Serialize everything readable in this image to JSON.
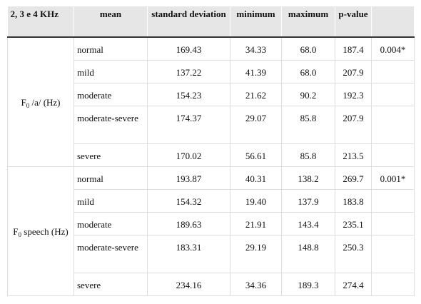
{
  "header": {
    "group": "2, 3 e 4 KHz",
    "col_grade": "mean",
    "col_mean": "standard deviation",
    "col_sd": "minimum",
    "col_min": "maximum",
    "col_max": "p-value",
    "col_p": ""
  },
  "groups": [
    {
      "label_main": "F",
      "label_sub": "0",
      "label_rest": " /a/ (Hz)",
      "rows": [
        {
          "grade": "normal",
          "mean": "169.43",
          "sd": "34.33",
          "min": "68.0",
          "max": "187.4",
          "p": "0.004*"
        },
        {
          "grade": "mild",
          "mean": "137.22",
          "sd": "41.39",
          "min": "68.0",
          "max": "207.9",
          "p": ""
        },
        {
          "grade": "moderate",
          "mean": "154.23",
          "sd": "21.62",
          "min": "90.2",
          "max": "192.3",
          "p": ""
        },
        {
          "grade": "moderate-severe",
          "mean": "174.37",
          "sd": "29.07",
          "min": "85.8",
          "max": "207.9",
          "p": ""
        },
        {
          "grade": "severe",
          "mean": "170.02",
          "sd": "56.61",
          "min": "85.8",
          "max": "213.5",
          "p": ""
        }
      ]
    },
    {
      "label_main": "F",
      "label_sub": "0",
      "label_rest": " speech (Hz)",
      "rows": [
        {
          "grade": "normal",
          "mean": "193.87",
          "sd": "40.31",
          "min": "138.2",
          "max": "269.7",
          "p": "0.001*"
        },
        {
          "grade": "mild",
          "mean": "154.32",
          "sd": "19.40",
          "min": "137.9",
          "max": "183.8",
          "p": ""
        },
        {
          "grade": "moderate",
          "mean": "189.63",
          "sd": "21.91",
          "min": "143.4",
          "max": "235.1",
          "p": ""
        },
        {
          "grade": "moderate-severe",
          "mean": "183.31",
          "sd": "29.19",
          "min": "148.8",
          "max": "250.3",
          "p": ""
        },
        {
          "grade": "severe",
          "mean": "234.16",
          "sd": "34.36",
          "min": "189.3",
          "max": "274.4",
          "p": ""
        }
      ]
    }
  ]
}
